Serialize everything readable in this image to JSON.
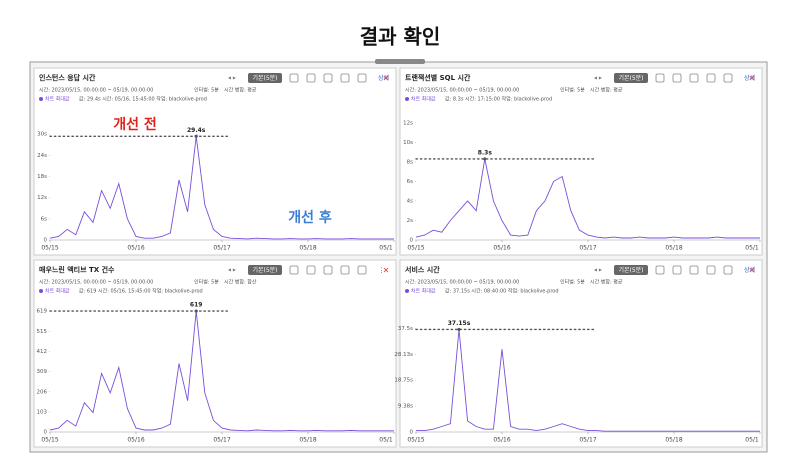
{
  "page_title": "결과 확인",
  "toolbar": {
    "interval": "기본(5분)",
    "detail": "상세"
  },
  "chart_data": [
    {
      "type": "line",
      "title": "인스턴스 응답 시간",
      "time_range": "시간: 2023/05/15, 00:00:00 ~ 05/19, 00:00:00",
      "interval_info": "인터벌: 5분",
      "merge": "시간 병합: 평균",
      "info": "값: 29.4s  시간: 05/16, 15:45:00  작업: blackolive-prod",
      "annotations": [
        {
          "text": "개선 전",
          "color": "#e0211c"
        },
        {
          "text": "개선 후",
          "color": "#3b7fd4"
        }
      ],
      "x": [
        0,
        0.1,
        0.2,
        0.3,
        0.4,
        0.5,
        0.6,
        0.7,
        0.8,
        0.9,
        1,
        1.1,
        1.2,
        1.3,
        1.4,
        1.5,
        1.6,
        1.7,
        1.8,
        1.9,
        2,
        2.1,
        2.2,
        2.3,
        2.4,
        2.5,
        2.6,
        2.7,
        2.8,
        2.9,
        3,
        3.1,
        3.2,
        3.3,
        3.4,
        3.5,
        3.6,
        3.7,
        3.8,
        3.9,
        4
      ],
      "series": [
        {
          "name": "차트 최대값",
          "color": "#7a4fd9",
          "values": [
            0.5,
            1,
            3,
            1.5,
            8,
            5,
            14,
            9,
            16,
            6,
            1,
            0.5,
            0.5,
            1,
            2,
            17,
            8,
            29.4,
            10,
            3,
            1,
            0.5,
            0.4,
            0.3,
            0.5,
            0.4,
            0.3,
            0.3,
            0.4,
            0.3,
            0.3,
            0.4,
            0.3,
            0.3,
            0.3,
            0.4,
            0.3,
            0.3,
            0.3,
            0.3,
            0.3
          ]
        }
      ],
      "max": 29.4,
      "max_label": "29.4s",
      "xlim": [
        0,
        4
      ],
      "xticks": [
        {
          "value": 0,
          "label": "05/15"
        },
        {
          "value": 1,
          "label": "05/16"
        },
        {
          "value": 2,
          "label": "05/17"
        },
        {
          "value": 3,
          "label": "05/18"
        },
        {
          "value": 4,
          "label": "05/1"
        }
      ],
      "ylim": [
        0,
        36
      ],
      "yticks": [
        0,
        {
          "value": 6,
          "label": "6s"
        },
        {
          "value": 12,
          "label": "12s"
        },
        {
          "value": 18,
          "label": "18s"
        },
        {
          "value": 24,
          "label": "24s"
        },
        {
          "value": 30,
          "label": "30s"
        }
      ]
    },
    {
      "type": "line",
      "title": "트랜잭션별 SQL 시간",
      "time_range": "시간: 2023/05/15, 00:00:00 ~ 05/19, 00:00:00",
      "interval_info": "인터벌: 5분",
      "merge": "시간 병합: 평균",
      "info": "값: 8.3s  시간: 17:15:00  작업: blackolive-prod",
      "x": [
        0,
        0.1,
        0.2,
        0.3,
        0.4,
        0.5,
        0.6,
        0.7,
        0.8,
        0.9,
        1,
        1.1,
        1.2,
        1.3,
        1.4,
        1.5,
        1.6,
        1.7,
        1.8,
        1.9,
        2,
        2.1,
        2.2,
        2.3,
        2.4,
        2.5,
        2.6,
        2.7,
        2.8,
        2.9,
        3,
        3.1,
        3.2,
        3.3,
        3.4,
        3.5,
        3.6,
        3.7,
        3.8,
        3.9,
        4
      ],
      "series": [
        {
          "name": "차트 최대값",
          "color": "#7a4fd9",
          "values": [
            0.3,
            0.5,
            1,
            0.8,
            2,
            3,
            4,
            3,
            8.3,
            4,
            2,
            0.5,
            0.4,
            0.5,
            3,
            4,
            6,
            6.5,
            3,
            1,
            0.5,
            0.3,
            0.2,
            0.3,
            0.2,
            0.2,
            0.3,
            0.2,
            0.2,
            0.2,
            0.3,
            0.2,
            0.2,
            0.2,
            0.2,
            0.3,
            0.2,
            0.2,
            0.2,
            0.2,
            0.2
          ]
        }
      ],
      "max": 8.3,
      "max_label": "8.3s",
      "xlim": [
        0,
        4
      ],
      "xticks": [
        {
          "value": 0,
          "label": "05/15"
        },
        {
          "value": 1,
          "label": "05/16"
        },
        {
          "value": 2,
          "label": "05/17"
        },
        {
          "value": 3,
          "label": "05/18"
        },
        {
          "value": 4,
          "label": "05/1"
        }
      ],
      "ylim": [
        0,
        13
      ],
      "yticks": [
        0,
        {
          "value": 2,
          "label": "2s"
        },
        {
          "value": 4,
          "label": "4s"
        },
        {
          "value": 6,
          "label": "6s"
        },
        {
          "value": 8,
          "label": "8s"
        },
        {
          "value": 10,
          "label": "10s"
        },
        {
          "value": 12,
          "label": "12s"
        }
      ]
    },
    {
      "type": "line",
      "title": "매우느린 액티브 TX 건수",
      "time_range": "시간: 2023/05/15, 00:00:00 ~ 05/19, 00:00:00",
      "interval_info": "인터벌: 5분",
      "merge": "시간 병합: 합산",
      "info": "값: 619  시간: 05/16, 15:45:00  작업: blackolive-prod",
      "x": [
        0,
        0.1,
        0.2,
        0.3,
        0.4,
        0.5,
        0.6,
        0.7,
        0.8,
        0.9,
        1,
        1.1,
        1.2,
        1.3,
        1.4,
        1.5,
        1.6,
        1.7,
        1.8,
        1.9,
        2,
        2.1,
        2.2,
        2.3,
        2.4,
        2.5,
        2.6,
        2.7,
        2.8,
        2.9,
        3,
        3.1,
        3.2,
        3.3,
        3.4,
        3.5,
        3.6,
        3.7,
        3.8,
        3.9,
        4
      ],
      "series": [
        {
          "name": "차트 최대값",
          "color": "#7a4fd9",
          "values": [
            10,
            20,
            60,
            30,
            150,
            100,
            300,
            200,
            330,
            120,
            20,
            10,
            10,
            20,
            40,
            350,
            160,
            619,
            200,
            60,
            20,
            10,
            8,
            6,
            10,
            8,
            6,
            6,
            8,
            6,
            6,
            8,
            6,
            6,
            6,
            8,
            6,
            6,
            6,
            6,
            6
          ]
        }
      ],
      "max": 619,
      "xlim": [
        0,
        4
      ],
      "xticks": [
        {
          "value": 0,
          "label": "05/15"
        },
        {
          "value": 1,
          "label": "05/16"
        },
        {
          "value": 2,
          "label": "05/17"
        },
        {
          "value": 3,
          "label": "05/18"
        },
        {
          "value": 4,
          "label": "05/1"
        }
      ],
      "ylim": [
        0,
        650
      ],
      "yticks": [
        0,
        103,
        206,
        309,
        412,
        515,
        619
      ]
    },
    {
      "type": "line",
      "title": "서비스 시간",
      "time_range": "시간: 2023/05/15, 00:00:00 ~ 05/19, 00:00:00",
      "interval_info": "인터벌: 5분",
      "merge": "시간 병합: 평균",
      "info": "값: 37.15s  시간: 08:40:00  작업: blackolive-prod",
      "x": [
        0,
        0.1,
        0.2,
        0.3,
        0.4,
        0.5,
        0.6,
        0.7,
        0.8,
        0.9,
        1,
        1.1,
        1.2,
        1.3,
        1.4,
        1.5,
        1.6,
        1.7,
        1.8,
        1.9,
        2,
        2.1,
        2.2,
        2.3,
        2.4,
        2.5,
        2.6,
        2.7,
        2.8,
        2.9,
        3,
        3.1,
        3.2,
        3.3,
        3.4,
        3.5,
        3.6,
        3.7,
        3.8,
        3.9,
        4
      ],
      "series": [
        {
          "name": "차트 최대값",
          "color": "#7a4fd9",
          "values": [
            0.5,
            0.5,
            1,
            2,
            3,
            37.15,
            4,
            2,
            1,
            1,
            30,
            2,
            1,
            1,
            0.5,
            1,
            2,
            3,
            2,
            1,
            0.5,
            0.5,
            0.3,
            0.3,
            0.3,
            0.3,
            0.3,
            0.3,
            0.3,
            0.3,
            0.3,
            0.3,
            0.3,
            0.3,
            0.3,
            0.3,
            0.3,
            0.3,
            0.3,
            0.3,
            0.3
          ]
        }
      ],
      "max": 37.15,
      "max_label": "37.15s",
      "xlim": [
        0,
        4
      ],
      "xticks": [
        {
          "value": 0,
          "label": "05/15"
        },
        {
          "value": 1,
          "label": "05/16"
        },
        {
          "value": 2,
          "label": "05/17"
        },
        {
          "value": 3,
          "label": "05/18"
        },
        {
          "value": 4,
          "label": "05/1"
        }
      ],
      "ylim": [
        0,
        46
      ],
      "yticks": [
        0,
        {
          "value": 9.38,
          "label": "9.38s"
        },
        {
          "value": 18.75,
          "label": "18.75s"
        },
        {
          "value": 28.13,
          "label": "28.13s"
        },
        {
          "value": 37.5,
          "label": "37.5s"
        }
      ]
    }
  ]
}
